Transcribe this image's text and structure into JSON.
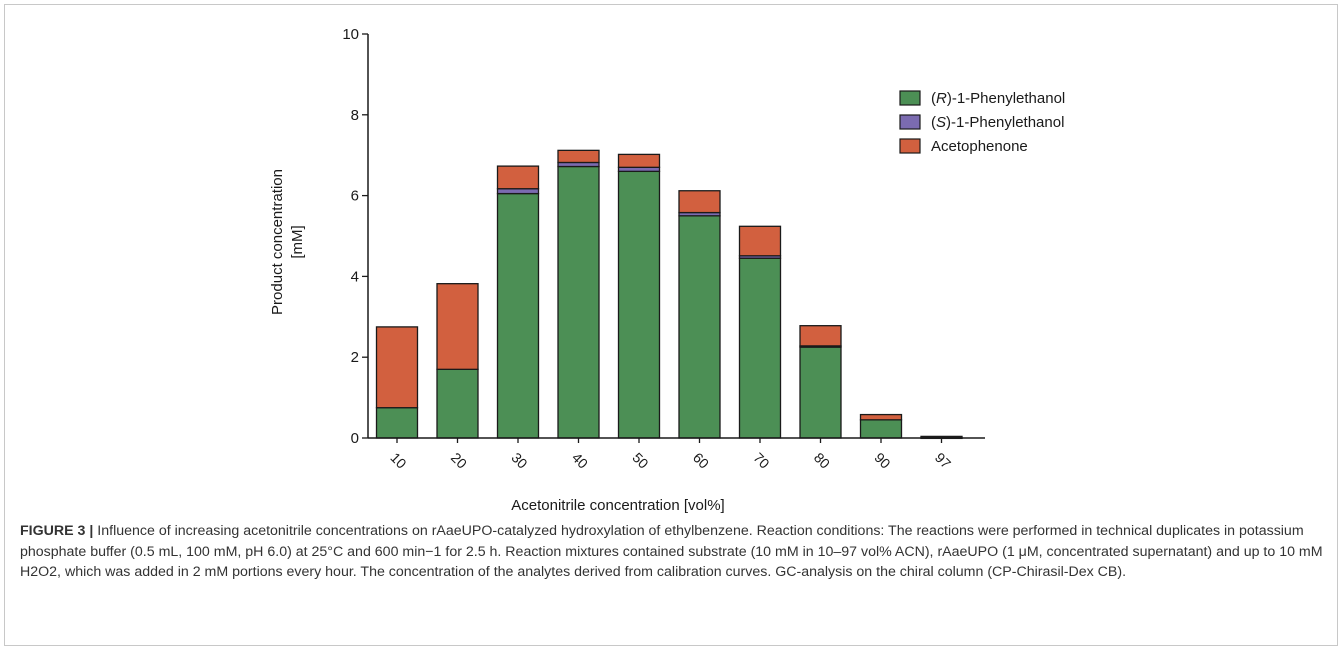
{
  "chart_data": {
    "type": "bar",
    "stacked": true,
    "categories": [
      "10",
      "20",
      "30",
      "40",
      "50",
      "60",
      "70",
      "80",
      "90",
      "97"
    ],
    "series": [
      {
        "name": "(R)-1-Phenylethanol",
        "color": "#4c8f55",
        "values": [
          0.75,
          1.7,
          6.05,
          6.72,
          6.6,
          5.5,
          4.45,
          2.25,
          0.45,
          0.01
        ]
      },
      {
        "name": "(S)-1-Phenylethanol",
        "color": "#7b6bb0",
        "values": [
          0.0,
          0.0,
          0.12,
          0.1,
          0.1,
          0.08,
          0.06,
          0.03,
          0.0,
          0.0
        ]
      },
      {
        "name": "Acetophenone",
        "color": "#d2603f",
        "values": [
          2.0,
          2.12,
          0.56,
          0.3,
          0.32,
          0.54,
          0.73,
          0.5,
          0.13,
          0.03
        ]
      }
    ],
    "ylim": [
      0,
      10
    ],
    "yticks": [
      "0",
      "2",
      "4",
      "6",
      "8",
      "10"
    ],
    "xlabel": "Acetonitrile concentration [vol%]",
    "ylabel_lines": [
      "Product concentration",
      "[mM]"
    ],
    "legend_position": "top-right"
  },
  "caption": {
    "label": "FIGURE 3 |",
    "text": "Influence of increasing acetonitrile concentrations on rAaeUPO-catalyzed hydroxylation of ethylbenzene. Reaction conditions: The reactions were performed in technical duplicates in potassium phosphate buffer (0.5 mL, 100 mM, pH 6.0) at 25°C and 600 min−1 for 2.5 h. Reaction mixtures contained substrate (10 mM in 10–97 vol% ACN), rAaeUPO (1 μM, concentrated supernatant) and up to 10 mM H2O2, which was added in 2 mM portions every hour. The concentration of the analytes derived from calibration curves. GC-analysis on the chiral column (CP-Chirasil-Dex CB)."
  }
}
